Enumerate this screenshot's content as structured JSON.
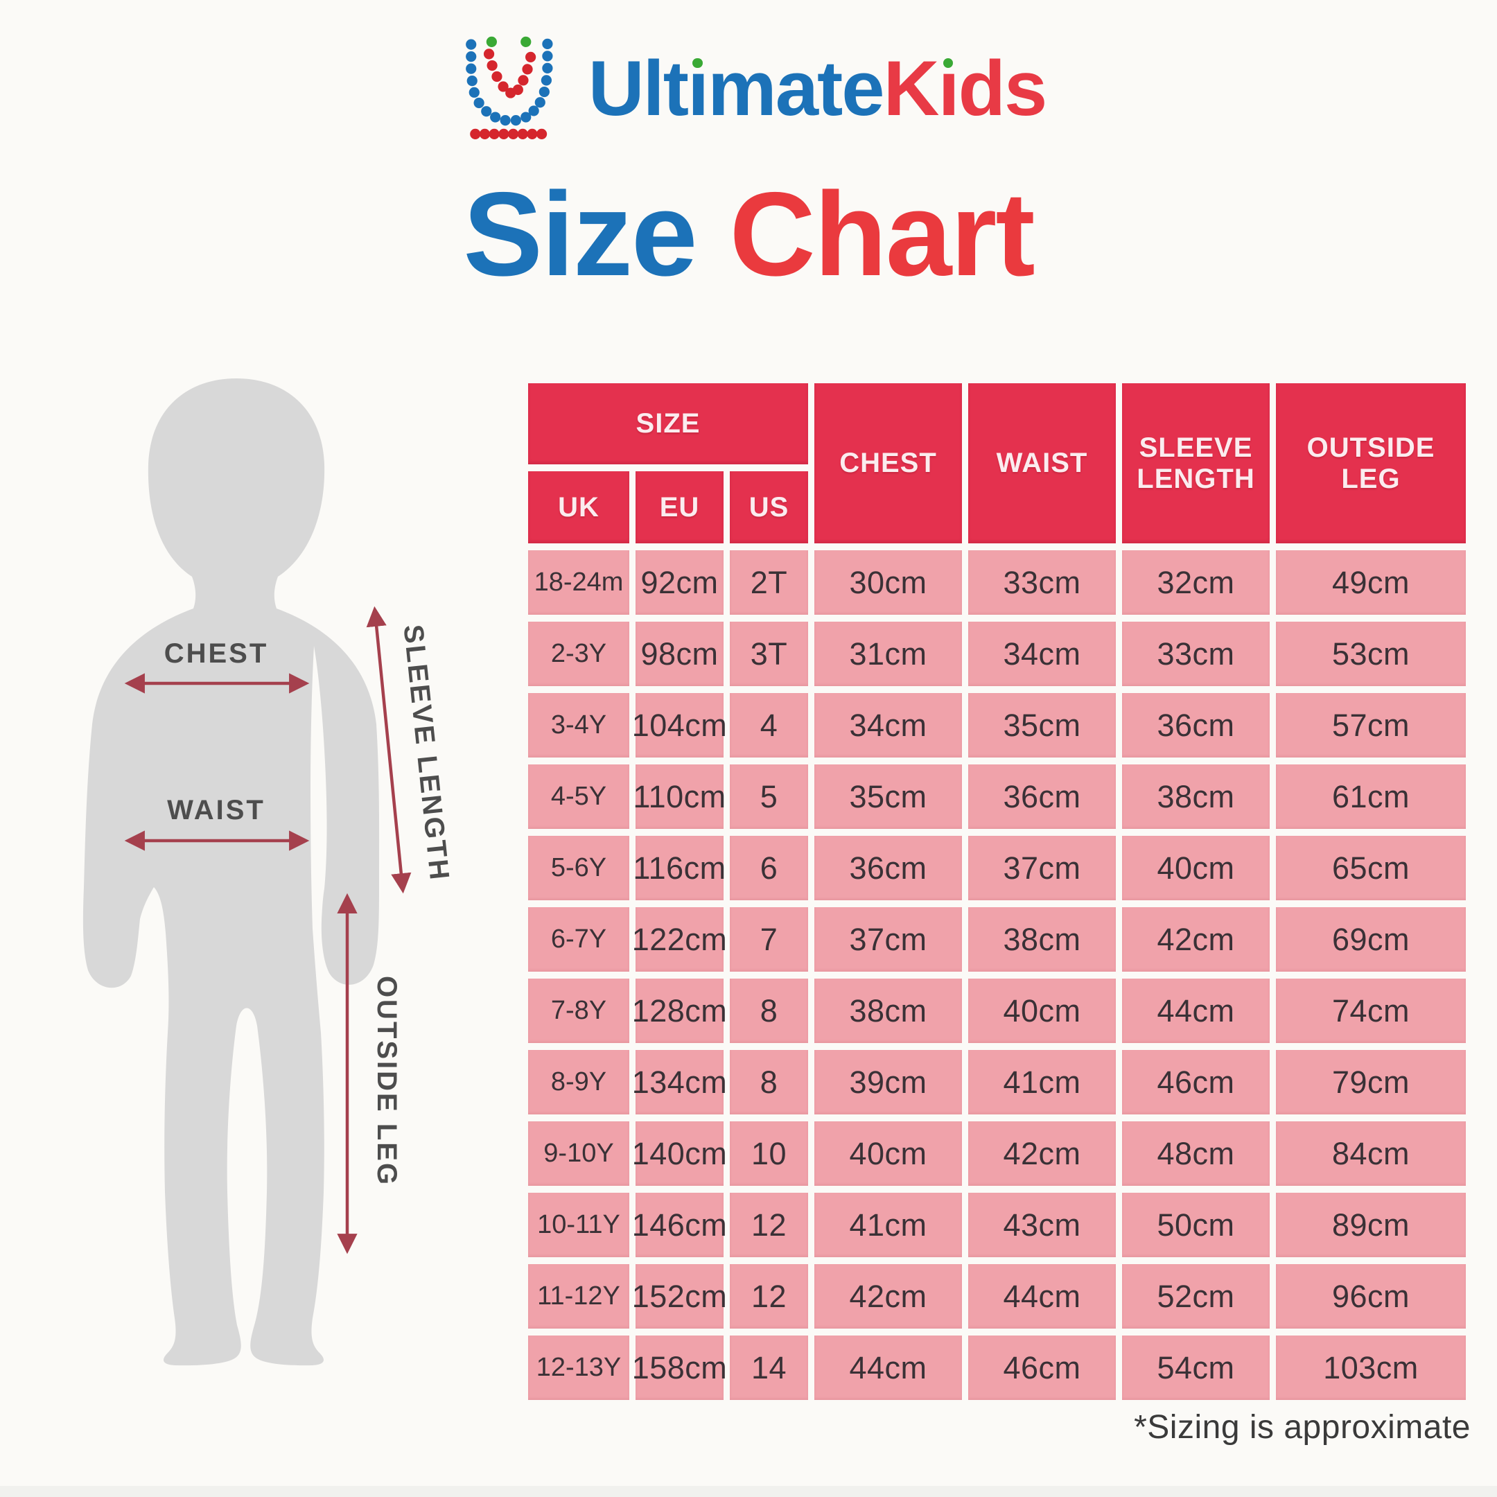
{
  "brand": {
    "logo_text_blue": "Ultimate",
    "logo_text_red": "Kids",
    "title_word1": "Size",
    "title_word2": "Chart"
  },
  "figure": {
    "labels": {
      "chest": "CHEST",
      "waist": "WAIST",
      "sleeve_length": "SLEEVE LENGTH",
      "outside_leg": "OUTSIDE LEG"
    }
  },
  "table": {
    "headers": {
      "size": "SIZE",
      "uk": "UK",
      "eu": "EU",
      "us": "US",
      "chest": "CHEST",
      "waist": "WAIST",
      "sleeve_length": "SLEEVE LENGTH",
      "outside_leg": "OUTSIDE LEG"
    },
    "rows": [
      [
        "18-24m",
        "92cm",
        "2T",
        "30cm",
        "33cm",
        "32cm",
        "49cm"
      ],
      [
        "2-3Y",
        "98cm",
        "3T",
        "31cm",
        "34cm",
        "33cm",
        "53cm"
      ],
      [
        "3-4Y",
        "104cm",
        "4",
        "34cm",
        "35cm",
        "36cm",
        "57cm"
      ],
      [
        "4-5Y",
        "110cm",
        "5",
        "35cm",
        "36cm",
        "38cm",
        "61cm"
      ],
      [
        "5-6Y",
        "116cm",
        "6",
        "36cm",
        "37cm",
        "40cm",
        "65cm"
      ],
      [
        "6-7Y",
        "122cm",
        "7",
        "37cm",
        "38cm",
        "42cm",
        "69cm"
      ],
      [
        "7-8Y",
        "128cm",
        "8",
        "38cm",
        "40cm",
        "44cm",
        "74cm"
      ],
      [
        "8-9Y",
        "134cm",
        "8",
        "39cm",
        "41cm",
        "46cm",
        "79cm"
      ],
      [
        "9-10Y",
        "140cm",
        "10",
        "40cm",
        "42cm",
        "48cm",
        "84cm"
      ],
      [
        "10-11Y",
        "146cm",
        "12",
        "41cm",
        "43cm",
        "50cm",
        "89cm"
      ],
      [
        "11-12Y",
        "152cm",
        "12",
        "42cm",
        "44cm",
        "52cm",
        "96cm"
      ],
      [
        "12-13Y",
        "158cm",
        "14",
        "44cm",
        "46cm",
        "54cm",
        "103cm"
      ]
    ]
  },
  "footnote": "*Sizing is approximate",
  "colors": {
    "header_red": "#e4314e",
    "cell_pink": "#f0a2aa",
    "brand_blue": "#1c72b8",
    "brand_red": "#e83a45",
    "dot_red": "#d5262d",
    "dot_green": "#3aa935",
    "arrow_maroon": "#a5404d",
    "silhouette_grey": "#d8d8d8"
  },
  "chart_data": {
    "type": "table",
    "title": "UltimateKids Size Chart",
    "columns": [
      "UK",
      "EU",
      "US",
      "CHEST",
      "WAIST",
      "SLEEVE LENGTH",
      "OUTSIDE LEG"
    ],
    "rows": [
      [
        "18-24m",
        "92cm",
        "2T",
        "30cm",
        "33cm",
        "32cm",
        "49cm"
      ],
      [
        "2-3Y",
        "98cm",
        "3T",
        "31cm",
        "34cm",
        "33cm",
        "53cm"
      ],
      [
        "3-4Y",
        "104cm",
        "4",
        "34cm",
        "35cm",
        "36cm",
        "57cm"
      ],
      [
        "4-5Y",
        "110cm",
        "5",
        "35cm",
        "36cm",
        "38cm",
        "61cm"
      ],
      [
        "5-6Y",
        "116cm",
        "6",
        "36cm",
        "37cm",
        "40cm",
        "65cm"
      ],
      [
        "6-7Y",
        "122cm",
        "7",
        "37cm",
        "38cm",
        "42cm",
        "69cm"
      ],
      [
        "7-8Y",
        "128cm",
        "8",
        "38cm",
        "40cm",
        "44cm",
        "74cm"
      ],
      [
        "8-9Y",
        "134cm",
        "8",
        "39cm",
        "41cm",
        "46cm",
        "79cm"
      ],
      [
        "9-10Y",
        "140cm",
        "10",
        "40cm",
        "42cm",
        "48cm",
        "84cm"
      ],
      [
        "10-11Y",
        "146cm",
        "12",
        "41cm",
        "43cm",
        "50cm",
        "89cm"
      ],
      [
        "11-12Y",
        "152cm",
        "12",
        "42cm",
        "44cm",
        "52cm",
        "96cm"
      ],
      [
        "12-13Y",
        "158cm",
        "14",
        "44cm",
        "46cm",
        "54cm",
        "103cm"
      ]
    ],
    "annotations": [
      "CHEST",
      "WAIST",
      "SLEEVE LENGTH",
      "OUTSIDE LEG",
      "*Sizing is approximate"
    ]
  }
}
